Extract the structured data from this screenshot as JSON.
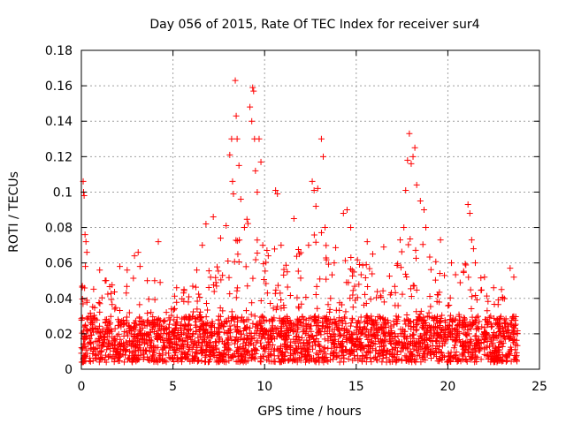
{
  "chart_data": {
    "type": "scatter",
    "title": "Day 056 of 2015, Rate Of TEC Index for receiver sur4",
    "xlabel": "GPS time / hours",
    "ylabel": "ROTI / TECUs",
    "xlim": [
      0,
      25
    ],
    "ylim": [
      0,
      0.18
    ],
    "x_ticks": [
      "0",
      "5",
      "10",
      "15",
      "20",
      "25"
    ],
    "y_ticks": [
      "0",
      "0.02",
      "0.04",
      "0.06",
      "0.08",
      "0.1",
      "0.12",
      "0.14",
      "0.16",
      "0.18"
    ],
    "grid": true,
    "marker": "+",
    "color": "#ff0000",
    "series": [
      {
        "points": [
          [
            0.1,
            0.106
          ],
          [
            0.12,
            0.1
          ],
          [
            0.15,
            0.098
          ],
          [
            0.2,
            0.076
          ],
          [
            0.25,
            0.072
          ],
          [
            0.3,
            0.066
          ],
          [
            0.22,
            0.058
          ],
          [
            1.0,
            0.056
          ],
          [
            1.3,
            0.05
          ],
          [
            2.1,
            0.058
          ],
          [
            2.5,
            0.056
          ],
          [
            2.9,
            0.064
          ],
          [
            3.1,
            0.066
          ],
          [
            3.2,
            0.058
          ],
          [
            3.6,
            0.05
          ],
          [
            4.0,
            0.05
          ],
          [
            4.2,
            0.072
          ],
          [
            4.3,
            0.049
          ],
          [
            5.2,
            0.046
          ],
          [
            5.6,
            0.045
          ],
          [
            6.3,
            0.056
          ],
          [
            6.6,
            0.07
          ],
          [
            6.8,
            0.082
          ],
          [
            7.2,
            0.086
          ],
          [
            7.6,
            0.074
          ],
          [
            7.9,
            0.081
          ],
          [
            8.1,
            0.121
          ],
          [
            8.2,
            0.13
          ],
          [
            8.25,
            0.106
          ],
          [
            8.3,
            0.099
          ],
          [
            8.4,
            0.163
          ],
          [
            8.45,
            0.143
          ],
          [
            8.5,
            0.13
          ],
          [
            8.6,
            0.115
          ],
          [
            8.7,
            0.096
          ],
          [
            8.9,
            0.08
          ],
          [
            9.2,
            0.148
          ],
          [
            9.3,
            0.14
          ],
          [
            9.35,
            0.159
          ],
          [
            9.4,
            0.157
          ],
          [
            9.45,
            0.13
          ],
          [
            9.5,
            0.112
          ],
          [
            9.6,
            0.1
          ],
          [
            9.7,
            0.13
          ],
          [
            9.8,
            0.117
          ],
          [
            9.9,
            0.07
          ],
          [
            10.2,
            0.064
          ],
          [
            10.6,
            0.101
          ],
          [
            10.7,
            0.099
          ],
          [
            10.9,
            0.07
          ],
          [
            11.6,
            0.085
          ],
          [
            11.9,
            0.065
          ],
          [
            12.4,
            0.07
          ],
          [
            12.6,
            0.106
          ],
          [
            12.7,
            0.101
          ],
          [
            12.8,
            0.092
          ],
          [
            12.9,
            0.102
          ],
          [
            13.1,
            0.13
          ],
          [
            13.2,
            0.12
          ],
          [
            13.3,
            0.08
          ],
          [
            13.8,
            0.06
          ],
          [
            14.3,
            0.088
          ],
          [
            14.5,
            0.09
          ],
          [
            14.7,
            0.08
          ],
          [
            15.6,
            0.072
          ],
          [
            15.9,
            0.065
          ],
          [
            16.5,
            0.069
          ],
          [
            17.4,
            0.073
          ],
          [
            17.6,
            0.08
          ],
          [
            17.7,
            0.101
          ],
          [
            17.8,
            0.118
          ],
          [
            17.9,
            0.133
          ],
          [
            18.0,
            0.116
          ],
          [
            18.1,
            0.12
          ],
          [
            18.2,
            0.125
          ],
          [
            18.3,
            0.104
          ],
          [
            18.5,
            0.095
          ],
          [
            18.7,
            0.09
          ],
          [
            18.8,
            0.08
          ],
          [
            19.6,
            0.073
          ],
          [
            20.2,
            0.06
          ],
          [
            21.1,
            0.093
          ],
          [
            21.2,
            0.088
          ],
          [
            21.3,
            0.073
          ],
          [
            21.4,
            0.068
          ],
          [
            21.5,
            0.06
          ],
          [
            22.0,
            0.052
          ],
          [
            22.5,
            0.046
          ],
          [
            23.0,
            0.04
          ],
          [
            23.4,
            0.057
          ],
          [
            23.6,
            0.052
          ]
        ],
        "dense_band": {
          "x_range": [
            0,
            23.8
          ],
          "baseline_range": [
            0.004,
            0.03
          ],
          "upper_envelope": [
            [
              0,
              0.048
            ],
            [
              1,
              0.052
            ],
            [
              2,
              0.05
            ],
            [
              3,
              0.055
            ],
            [
              4,
              0.045
            ],
            [
              5,
              0.042
            ],
            [
              6,
              0.05
            ],
            [
              7,
              0.06
            ],
            [
              8,
              0.07
            ],
            [
              9,
              0.085
            ],
            [
              10,
              0.075
            ],
            [
              11,
              0.07
            ],
            [
              12,
              0.068
            ],
            [
              13,
              0.08
            ],
            [
              14,
              0.075
            ],
            [
              15,
              0.065
            ],
            [
              16,
              0.06
            ],
            [
              17,
              0.065
            ],
            [
              18,
              0.075
            ],
            [
              19,
              0.07
            ],
            [
              20,
              0.055
            ],
            [
              21,
              0.06
            ],
            [
              22,
              0.05
            ],
            [
              23,
              0.045
            ],
            [
              23.8,
              0.04
            ]
          ]
        }
      }
    ]
  }
}
